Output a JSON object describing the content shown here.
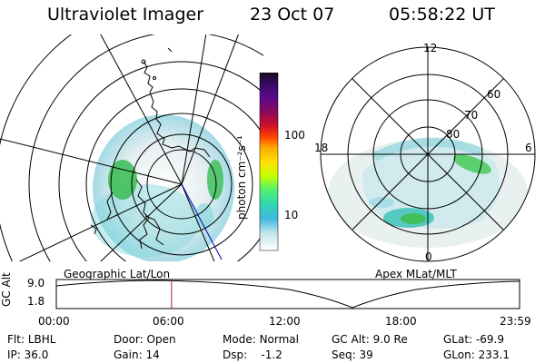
{
  "header": {
    "instrument": "Ultraviolet Imager",
    "date": "23 Oct 07",
    "time": "05:58:22 UT"
  },
  "colorbar": {
    "unit_label": "photon cm⁻²s⁻¹",
    "ticks": [
      "100",
      "10"
    ],
    "colors": [
      "#1a0a1e",
      "#3a0a6a",
      "#4a0a8a",
      "#7a0a6a",
      "#b0104a",
      "#e0101a",
      "#ff5a00",
      "#ffa800",
      "#ffe000",
      "#c8ff00",
      "#50f070",
      "#30d8b0",
      "#40b8e0",
      "#a0e0e8",
      "#dce8ea",
      "#ffffff"
    ]
  },
  "geo_panel": {
    "caption": "Geographic Lat/Lon"
  },
  "apex_panel": {
    "caption": "Apex MLat/MLT",
    "mlt_labels": {
      "top": "12",
      "left": "18",
      "right": "6",
      "bottom": "0"
    },
    "lat_labels": [
      "60",
      "70",
      "80"
    ]
  },
  "altitude_plot": {
    "axis_label": "GC Alt",
    "y_ticks": [
      "9.0",
      "1.8"
    ],
    "x_ticks": [
      "00:00",
      "06:00",
      "12:00",
      "18:00",
      "23:59"
    ],
    "current_marker_hours": 5.97
  },
  "info": {
    "row1": [
      {
        "key": "Flt:",
        "val": "LBHL"
      },
      {
        "key": "Door:",
        "val": "Open"
      },
      {
        "key": "Mode:",
        "val": "Normal"
      },
      {
        "key": "GC Alt:",
        "val": "9.0 Re"
      },
      {
        "key": "GLat:",
        "val": "-69.9"
      }
    ],
    "row2": [
      {
        "key": "IP:",
        "val": "36.0"
      },
      {
        "key": "Gain:",
        "val": "14"
      },
      {
        "key": "Dsp:",
        "val": "-1.2"
      },
      {
        "key": "Seq:",
        "val": "39"
      },
      {
        "key": "GLon:",
        "val": "233.1"
      }
    ]
  }
}
